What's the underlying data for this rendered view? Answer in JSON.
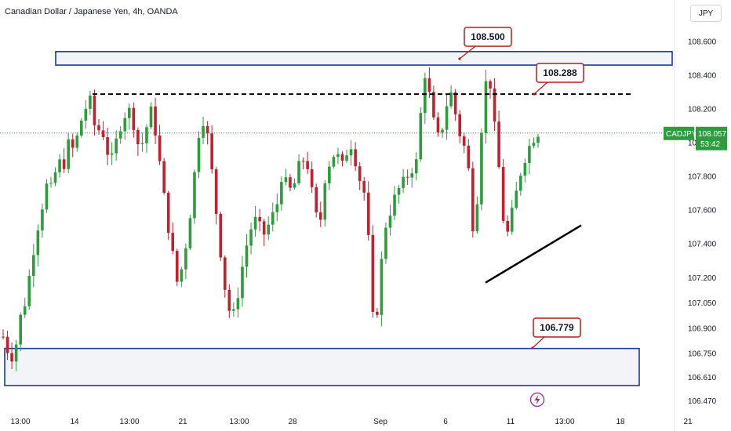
{
  "header": {
    "title": "Canadian Dollar / Japanese Yen, 4h, OANDA",
    "currency": "JPY"
  },
  "colors": {
    "up": "#089981",
    "up_body": "#2e9b3c",
    "down": "#c2202e",
    "zone_border": "#1a3a9c",
    "zone_fill": "#f2f4f7",
    "callout_border": "#b71c1c",
    "price_badge": "#2e9b3c"
  },
  "chart_data": {
    "type": "candlestick",
    "ylim": [
      106.43,
      108.66
    ],
    "y_ticks": [
      "108.600",
      "108.400",
      "108.200",
      "108.000",
      "107.800",
      "107.600",
      "107.400",
      "107.200",
      "107.050",
      "106.900",
      "106.750",
      "106.610",
      "106.470"
    ],
    "x_ticks": [
      "13:00",
      "14",
      "13:00",
      "21",
      "13:00",
      "28",
      "Sep",
      "6",
      "11",
      "13:00",
      "18",
      "21"
    ],
    "current_price": {
      "symbol": "CADJPY",
      "value": "108.057",
      "countdown": "53:42"
    },
    "zones": [
      {
        "low": 108.46,
        "high": 108.54
      },
      {
        "low": 106.56,
        "high": 106.78
      }
    ],
    "dashed_level": 108.288,
    "trendline": [
      {
        "price": 107.17
      },
      {
        "price": 107.51
      }
    ],
    "callouts": [
      {
        "text": "108.500",
        "price": 108.5
      },
      {
        "text": "108.288",
        "price": 108.288
      },
      {
        "text": "106.779",
        "price": 106.779
      }
    ],
    "series_waypoints": [
      106.85,
      106.75,
      106.72,
      106.95,
      107.05,
      107.25,
      107.45,
      107.6,
      107.75,
      107.72,
      107.9,
      107.85,
      108.0,
      107.95,
      108.1,
      108.2,
      108.25,
      108.05,
      108.1,
      107.95,
      107.9,
      108.05,
      108.15,
      108.2,
      108.1,
      107.95,
      108.05,
      108.2,
      108.05,
      107.8,
      107.55,
      107.35,
      107.15,
      107.3,
      107.5,
      107.8,
      108.1,
      108.15,
      107.9,
      107.6,
      107.3,
      107.05,
      106.95,
      107.1,
      107.3,
      107.45,
      107.55,
      107.5,
      107.45,
      107.55,
      107.6,
      107.8,
      107.75,
      107.7,
      107.85,
      107.9,
      107.85,
      107.6,
      107.5,
      107.8,
      107.9,
      107.95,
      107.85,
      107.95,
      108.0,
      107.8,
      107.75,
      107.4,
      106.8,
      107.2,
      107.5,
      107.6,
      107.7,
      107.75,
      107.8,
      107.85,
      107.9,
      108.45,
      108.3,
      108.1,
      108.0,
      108.2,
      108.3,
      108.15,
      108.0,
      107.95,
      107.5,
      107.7,
      108.3,
      108.42,
      108.1,
      107.8,
      107.4,
      107.55,
      107.7,
      107.85,
      107.95,
      108.02,
      108.06
    ]
  },
  "icons": {
    "event": "lightning-icon"
  }
}
